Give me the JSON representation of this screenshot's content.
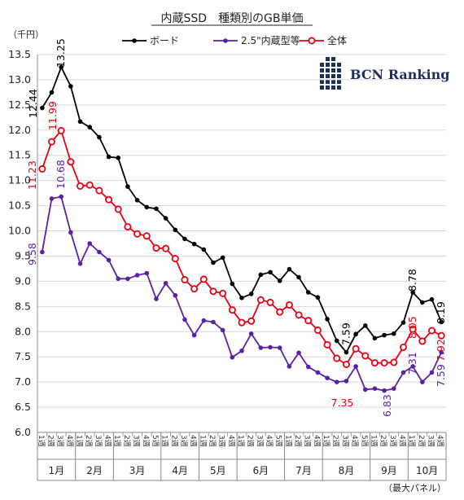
{
  "chart_data": {
    "type": "line",
    "title": "内蔵SSD　種類別のGB単価",
    "unit_label": "（千円）",
    "footnote": "（最大パネル）",
    "brand": "BCN Ranking",
    "ylim": [
      6.0,
      13.5
    ],
    "yticks": [
      "13.5",
      "13.0",
      "12.5",
      "12.0",
      "11.5",
      "11.0",
      "10.5",
      "10.0",
      "9.5",
      "9.0",
      "8.5",
      "8.0",
      "7.5",
      "7.0",
      "6.5",
      "6.0"
    ],
    "months": [
      {
        "label": "1月",
        "weeks": 4
      },
      {
        "label": "2月",
        "weeks": 4
      },
      {
        "label": "3月",
        "weeks": 5
      },
      {
        "label": "4月",
        "weeks": 4
      },
      {
        "label": "5月",
        "weeks": 4
      },
      {
        "label": "6月",
        "weeks": 5
      },
      {
        "label": "7月",
        "weeks": 4
      },
      {
        "label": "8月",
        "weeks": 5
      },
      {
        "label": "9月",
        "weeks": 4
      },
      {
        "label": "10月",
        "weeks": 4
      }
    ],
    "week_labels": [
      "1週",
      "2週",
      "3週",
      "4週",
      "1週",
      "2週",
      "3週",
      "4週",
      "1週",
      "2週",
      "3週",
      "4週",
      "5週",
      "1週",
      "2週",
      "3週",
      "4週",
      "1週",
      "2週",
      "3週",
      "4週",
      "1週",
      "2週",
      "3週",
      "4週",
      "5週",
      "1週",
      "2週",
      "3週",
      "4週",
      "1週",
      "2週",
      "3週",
      "4週",
      "5週",
      "1週",
      "2週",
      "3週",
      "4週",
      "1週",
      "2週",
      "3週",
      "4週"
    ],
    "series": [
      {
        "name": "ボード",
        "color": "#000000",
        "values": [
          12.44,
          12.75,
          13.25,
          12.87,
          12.17,
          12.06,
          11.86,
          11.47,
          11.45,
          10.88,
          10.61,
          10.47,
          10.44,
          10.25,
          10.02,
          9.84,
          9.74,
          9.63,
          9.37,
          9.47,
          8.95,
          8.67,
          8.75,
          9.13,
          9.18,
          9.01,
          9.24,
          9.08,
          8.78,
          8.68,
          8.25,
          7.82,
          7.59,
          7.95,
          8.12,
          7.87,
          7.93,
          7.96,
          8.18,
          8.78,
          8.58,
          8.64,
          8.19
        ],
        "labels": [
          {
            "index": 0,
            "text": "12.44"
          },
          {
            "index": 2,
            "text": "13.25"
          },
          {
            "index": 32,
            "text": "7.59"
          },
          {
            "index": 39,
            "text": "8.78"
          },
          {
            "index": 42,
            "text": "8.19"
          }
        ]
      },
      {
        "name": "2.5\"内蔵型等",
        "color": "#5b1fa8",
        "values": [
          9.58,
          10.64,
          10.68,
          9.97,
          9.35,
          9.75,
          9.58,
          9.42,
          9.05,
          9.05,
          9.12,
          9.16,
          8.65,
          8.96,
          8.72,
          8.24,
          7.93,
          8.22,
          8.19,
          8.03,
          7.49,
          7.62,
          7.96,
          7.68,
          7.69,
          7.68,
          7.31,
          7.58,
          7.3,
          7.19,
          7.08,
          7.0,
          7.02,
          7.31,
          6.85,
          6.87,
          6.83,
          6.87,
          7.19,
          7.31,
          7.0,
          7.19,
          7.59
        ],
        "labels": [
          {
            "index": 0,
            "text": "9.58"
          },
          {
            "index": 2,
            "text": "10.68"
          },
          {
            "index": 36,
            "text": "6.83"
          },
          {
            "index": 39,
            "text": "7.31"
          },
          {
            "index": 42,
            "text": "7.59"
          }
        ]
      },
      {
        "name": "全体",
        "color": "#e60012",
        "values": [
          11.23,
          11.77,
          11.99,
          11.37,
          10.89,
          10.91,
          10.8,
          10.62,
          10.43,
          10.08,
          9.94,
          9.9,
          9.66,
          9.65,
          9.45,
          9.03,
          8.85,
          9.04,
          8.8,
          8.76,
          8.43,
          8.18,
          8.21,
          8.63,
          8.58,
          8.39,
          8.53,
          8.33,
          8.22,
          8.03,
          7.74,
          7.47,
          7.35,
          7.66,
          7.52,
          7.38,
          7.38,
          7.39,
          7.69,
          8.05,
          7.81,
          8.02,
          7.92
        ],
        "labels": [
          {
            "index": 0,
            "text": "11.23"
          },
          {
            "index": 2,
            "text": "11.99"
          },
          {
            "index": 32,
            "text": "7.35"
          },
          {
            "index": 39,
            "text": "8.05"
          },
          {
            "index": 42,
            "text": "7.92"
          }
        ]
      }
    ]
  }
}
